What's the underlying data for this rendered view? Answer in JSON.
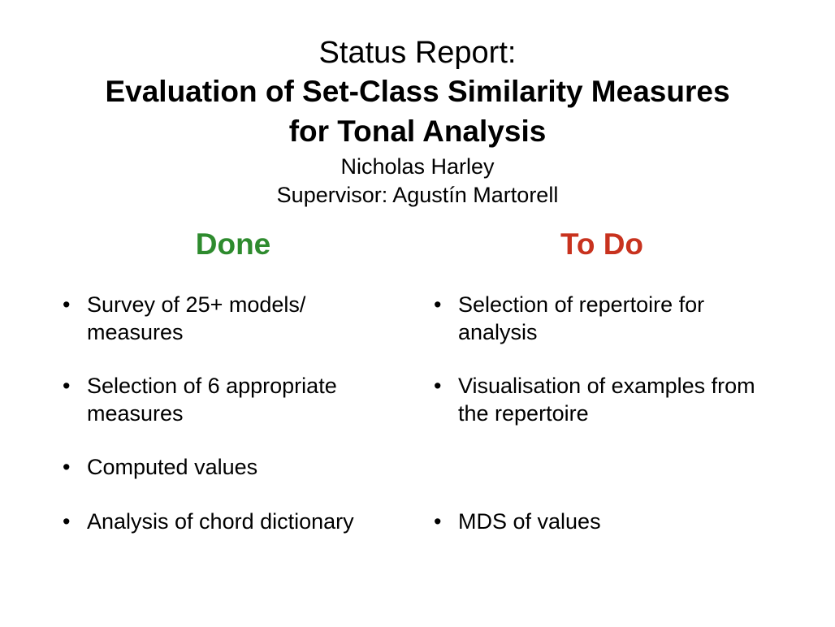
{
  "header": {
    "status_label": "Status Report:",
    "title_line1": "Evaluation of Set-Class Similarity Measures",
    "title_line2": "for Tonal Analysis",
    "author": "Nicholas Harley",
    "supervisor": "Supervisor: Agustín Martorell"
  },
  "done": {
    "heading": "Done",
    "heading_color": "#2e8b2e",
    "bullet": "•",
    "items": [
      {
        "line1": "Survey of 25+ models/",
        "line2": "measures"
      },
      {
        "line1": "Selection of 6 appropriate",
        "line2": "measures"
      },
      {
        "line1": "Computed values",
        "line2": ""
      },
      {
        "line1": "Analysis of chord dictionary",
        "line2": ""
      }
    ]
  },
  "todo": {
    "heading": "To Do",
    "heading_color": "#c8321e",
    "bullet": "•",
    "items": [
      {
        "line1": "Selection of repertoire for",
        "line2": "analysis"
      },
      {
        "line1": "Visualisation of examples from",
        "line2": "the repertoire"
      },
      {
        "line1": "MDS of values",
        "line2": ""
      }
    ]
  }
}
